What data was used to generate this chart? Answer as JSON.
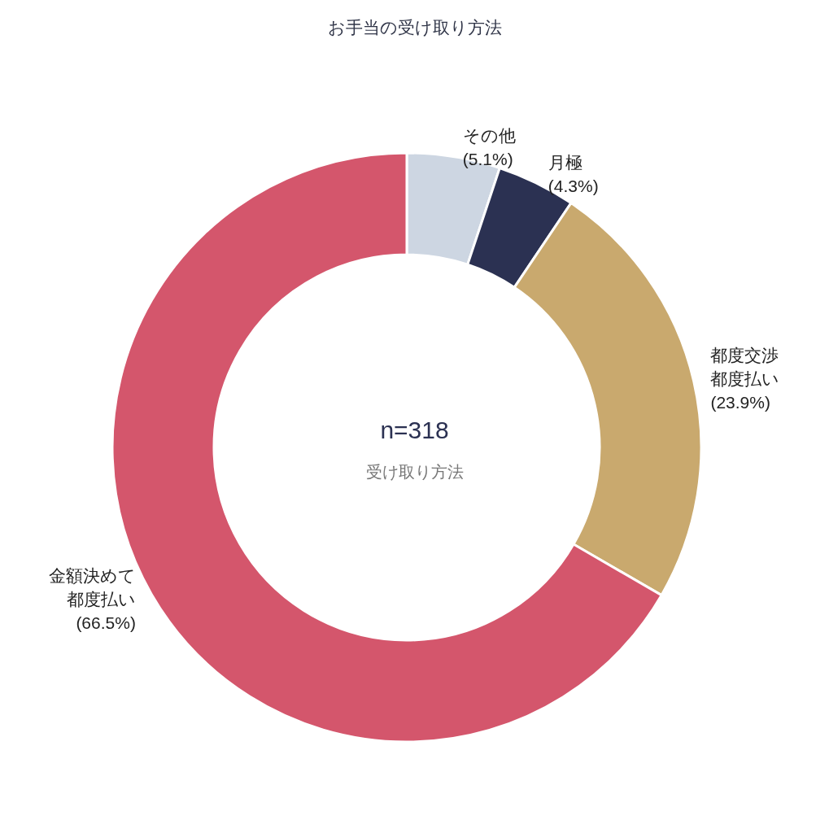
{
  "chart_data": {
    "type": "donut",
    "title": "お手当の受け取り方法",
    "categories": [
      "その他",
      "月極",
      "都度交渉都度払い",
      "金額決めて都度払い"
    ],
    "values": [
      5.1,
      4.3,
      23.9,
      66.5
    ],
    "colors": [
      "#cdd6e2",
      "#2b3152",
      "#c9a96e",
      "#d4566c"
    ],
    "value_labels": [
      "(5.1%)",
      "(4.3%)",
      "(23.9%)",
      "(66.5%)"
    ],
    "annotations": [
      "n=318",
      "受け取り方法"
    ]
  }
}
